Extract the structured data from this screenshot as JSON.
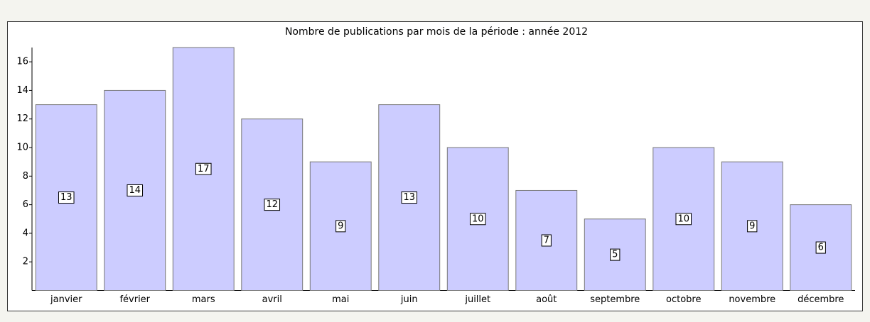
{
  "chart_data": {
    "type": "bar",
    "title": "Nombre de publications par mois de la période : année 2012",
    "categories": [
      "janvier",
      "février",
      "mars",
      "avril",
      "mai",
      "juin",
      "juillet",
      "août",
      "septembre",
      "octobre",
      "novembre",
      "décembre"
    ],
    "values": [
      13,
      14,
      17,
      12,
      9,
      13,
      10,
      7,
      5,
      10,
      9,
      6
    ],
    "color": "#ccccff",
    "ylim": [
      0,
      17
    ],
    "yticks": [
      2,
      4,
      6,
      8,
      10,
      12,
      14,
      16
    ],
    "grid": false
  }
}
